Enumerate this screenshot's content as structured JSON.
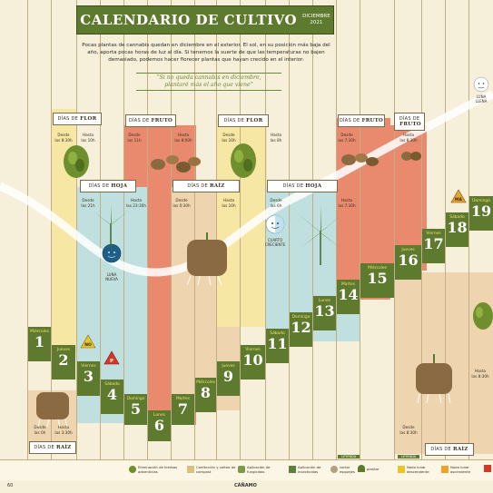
{
  "header": {
    "title": "CALENDARIO DE CULTIVO",
    "month": "DICIEMBRE",
    "year": "2021",
    "intro": "Pocas plantas de cannabis quedan en diciembre en el exterior. El sol, en su posición más baja del año, aporta pocas horas de luz al día. Si tenemos la suerte de que las temperaturas no bajen demasiado, podemos hacer florecer plantas que hayan crecido en el interior.",
    "quote_line1": "“Si no queda cannabis en diciembre,",
    "quote_line2": "plantaré más el año que viene”"
  },
  "phases": [
    {
      "prefix": "DÍAS DE",
      "name": "FLOR"
    },
    {
      "prefix": "DÍAS DE",
      "name": "FRUTO"
    },
    {
      "prefix": "DÍAS DE",
      "name": "FLOR"
    },
    {
      "prefix": "DÍAS DE",
      "name": "FRUTO"
    },
    {
      "prefix": "DÍAS DE",
      "name": "FRUTO"
    },
    {
      "prefix": "DÍAS DE",
      "name": "HOJA"
    },
    {
      "prefix": "DÍAS DE",
      "name": "RAÍZ"
    },
    {
      "prefix": "DÍAS DE",
      "name": "HOJA"
    },
    {
      "prefix": "DÍAS DE",
      "name": "RAÍZ"
    },
    {
      "prefix": "DÍAS DE",
      "name": "RAÍZ"
    }
  ],
  "times": [
    {
      "a": "Desde",
      "b": "las 8:30h"
    },
    {
      "a": "Hasta",
      "b": "las 10h"
    },
    {
      "a": "Desde",
      "b": "las 11h"
    },
    {
      "a": "Hasta",
      "b": "las 8:00h"
    },
    {
      "a": "Desde",
      "b": "las 10h"
    },
    {
      "a": "Hasta",
      "b": "las 8h"
    },
    {
      "a": "Desde",
      "b": "las 7:30h"
    },
    {
      "a": "Hasta",
      "b": "las 8:30h"
    },
    {
      "a": "Desde",
      "b": "las 21h"
    },
    {
      "a": "Hasta",
      "b": "las 23:30h"
    },
    {
      "a": "Desde",
      "b": "las 0:30h"
    },
    {
      "a": "Hasta",
      "b": "las 10h"
    },
    {
      "a": "Desde",
      "b": "las 6h"
    },
    {
      "a": "Hasta",
      "b": "las 7:30h"
    },
    {
      "a": "Desde",
      "b": "las 0h"
    },
    {
      "a": "Hasta",
      "b": "las 3:30h"
    },
    {
      "a": "Desde",
      "b": "las 8:30h"
    },
    {
      "a": "Hasta",
      "b": "las 8:30h"
    }
  ],
  "moons": [
    {
      "label1": "LUNA",
      "label2": "LLENA"
    },
    {
      "label1": "LUNA",
      "label2": "NUEVA"
    },
    {
      "label1": "CUARTO",
      "label2": "CRECIENTE"
    }
  ],
  "badges": [
    "NO",
    "P",
    "MA"
  ],
  "days": [
    {
      "name": "Miércoles",
      "num": "1"
    },
    {
      "name": "Jueves",
      "num": "2"
    },
    {
      "name": "Viernes",
      "num": "3"
    },
    {
      "name": "Sábado",
      "num": "4"
    },
    {
      "name": "Domingo",
      "num": "5"
    },
    {
      "name": "Lunes",
      "num": "6"
    },
    {
      "name": "Martes",
      "num": "7"
    },
    {
      "name": "Miércoles",
      "num": "8"
    },
    {
      "name": "Jueves",
      "num": "9"
    },
    {
      "name": "Viernes",
      "num": "10"
    },
    {
      "name": "Sábado",
      "num": "11"
    },
    {
      "name": "Domingo",
      "num": "12"
    },
    {
      "name": "Lunes",
      "num": "13"
    },
    {
      "name": "Martes",
      "num": "14"
    },
    {
      "name": "Miércoles",
      "num": "15"
    },
    {
      "name": "Jueves",
      "num": "16"
    },
    {
      "name": "Viernes",
      "num": "17"
    },
    {
      "name": "Sábado",
      "num": "18"
    },
    {
      "name": "Domingo",
      "num": "19"
    }
  ],
  "legend": {
    "weeds": "Eliminación de hierbas adventicias",
    "compost": "Confección y volteo de compost",
    "fungicides": "Aplicación de fungicidas",
    "insecticides": "Aplicación de insecticidas",
    "cuttings": "cortar esquejes",
    "plant": "plantar",
    "descending": "Nodo lunar descendente",
    "ascending": "Nodo lunar ascendente",
    "lower_tag1": "LEYENDA",
    "lower_tag2": "LEYENDA"
  },
  "footer": {
    "page": "60",
    "brand": "CÁÑAMO"
  },
  "colors": {
    "green": "#5e7a2e",
    "flower": "#f7e7a4",
    "fruit": "#e98a6e",
    "leaf": "#bfe0df",
    "root": "#eed5b0",
    "paper": "#f6efd9"
  }
}
